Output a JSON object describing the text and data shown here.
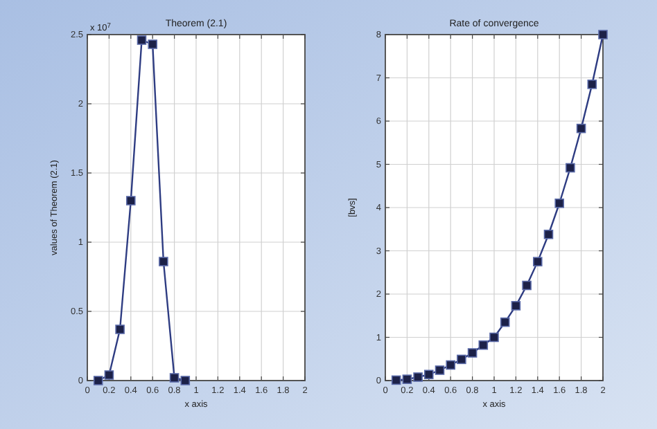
{
  "chart_data": [
    {
      "type": "line",
      "title": "Theorem (2.1)",
      "xlabel": "x axis",
      "ylabel": "values of Theorem (2.1)",
      "annotations": [
        "x 10$^{7}$"
      ],
      "x": [
        0.1,
        0.2,
        0.3,
        0.4,
        0.5,
        0.6,
        0.7,
        0.8,
        0.9
      ],
      "series": [
        {
          "color": "#2e3c82",
          "values": [
            0,
            0.04,
            0.37,
            1.3,
            2.46,
            2.43,
            0.86,
            0.02,
            0
          ]
        }
      ],
      "xlim": [
        0,
        2
      ],
      "xticks": [
        0,
        0.2,
        0.4,
        0.6,
        0.8,
        1,
        1.2,
        1.4,
        1.6,
        1.8,
        2
      ],
      "ylim": [
        0,
        2.5
      ],
      "yticks": [
        0,
        0.5,
        1,
        1.5,
        2,
        2.5
      ],
      "grid": true,
      "marker": "square",
      "line_style": "solid"
    },
    {
      "type": "line",
      "title": "Rate of convergence",
      "xlabel": "x axis",
      "ylabel": "[bvs]",
      "x": [
        0.1,
        0.2,
        0.3,
        0.4,
        0.5,
        0.6,
        0.7,
        0.8,
        0.9,
        1,
        1.1,
        1.2,
        1.3,
        1.4,
        1.5,
        1.6,
        1.7,
        1.8,
        1.9,
        2
      ],
      "series": [
        {
          "color": "#2e3c82",
          "values": [
            0.01,
            0.03,
            0.08,
            0.14,
            0.24,
            0.36,
            0.49,
            0.64,
            0.82,
            1.0,
            1.35,
            1.73,
            2.2,
            2.75,
            3.38,
            4.1,
            4.92,
            5.83,
            6.85,
            8.0
          ]
        }
      ],
      "xlim": [
        0,
        2
      ],
      "xticks": [
        0,
        0.2,
        0.4,
        0.6,
        0.8,
        1,
        1.2,
        1.4,
        1.6,
        1.8,
        2
      ],
      "ylim": [
        0,
        8
      ],
      "yticks": [
        0,
        1,
        2,
        3,
        4,
        5,
        6,
        7,
        8
      ],
      "grid": true,
      "marker": "square",
      "line_style": "solid"
    }
  ]
}
